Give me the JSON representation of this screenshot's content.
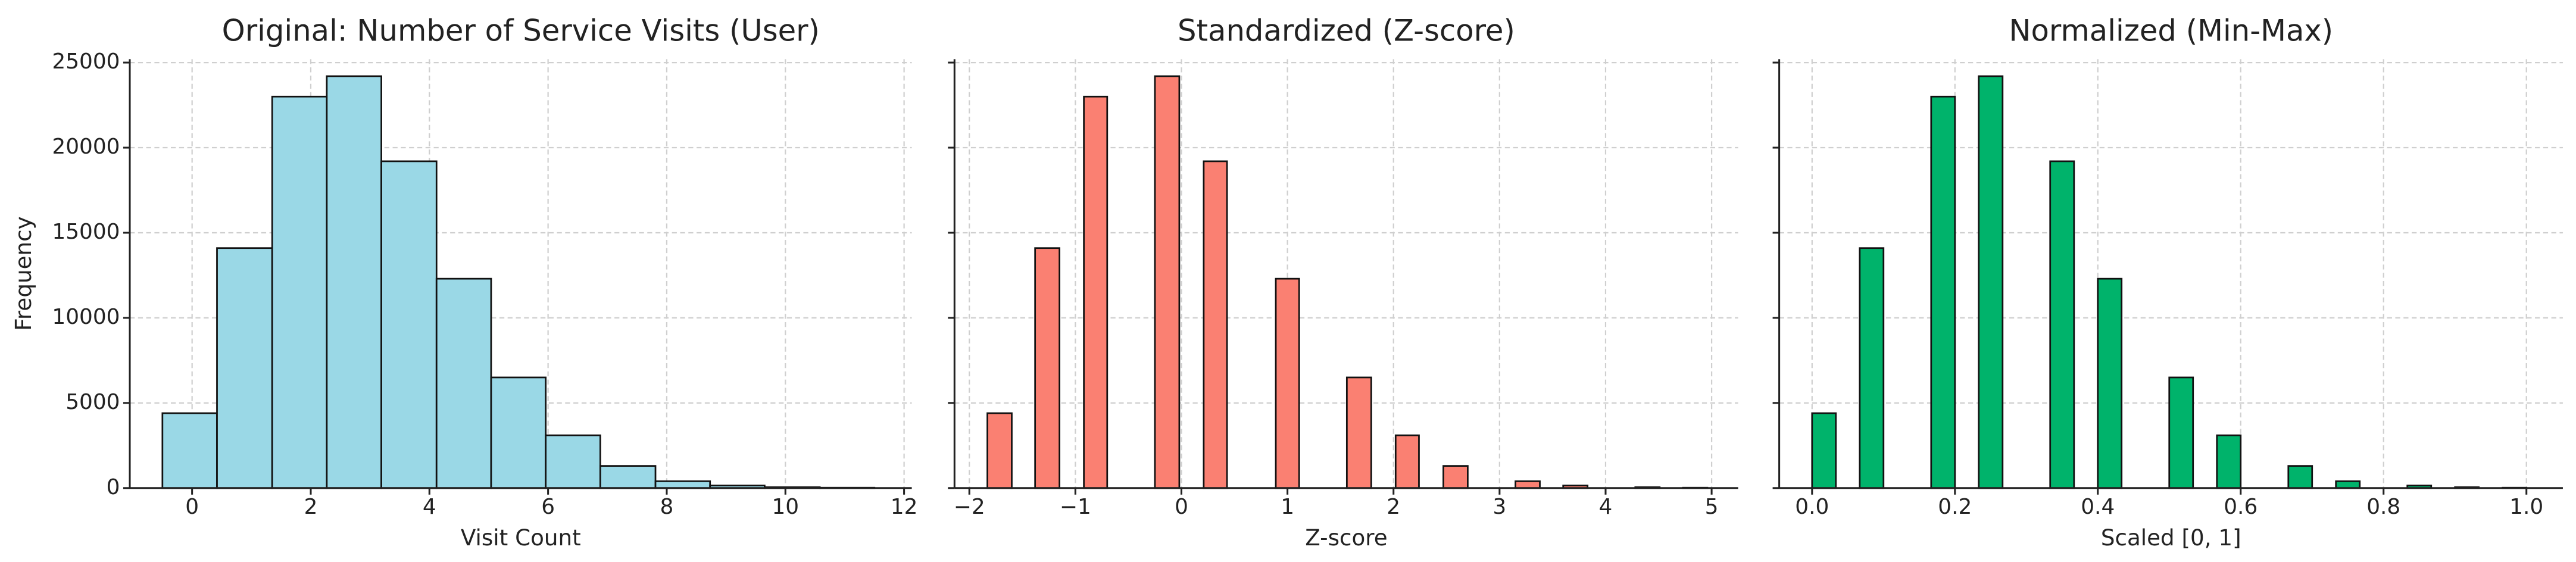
{
  "chart_data": [
    {
      "type": "histogram",
      "title": "Original: Number of Service Visits (User)",
      "xlabel": "Visit Count",
      "ylabel": "Frequency",
      "bins": [
        -0.5,
        0.42,
        1.35,
        2.27,
        3.19,
        4.12,
        5.04,
        5.96,
        6.88,
        7.81,
        8.73,
        9.65,
        10.58,
        11.5
      ],
      "values": [
        4400,
        14100,
        23000,
        24200,
        19200,
        12300,
        6500,
        3100,
        1300,
        400,
        150,
        50,
        20
      ],
      "color": "#9ad8e6",
      "xlim": [
        -1.05,
        12.13
      ],
      "ylim": [
        0,
        25200
      ],
      "xticks": [
        0,
        2,
        4,
        6,
        8,
        10,
        12
      ],
      "yticks": [
        0,
        5000,
        10000,
        15000,
        20000,
        25000
      ],
      "grid": true
    },
    {
      "type": "histogram",
      "title": "Standardized (Z-score)",
      "xlabel": "Z-score",
      "bins": [
        -1.83,
        -1.6,
        -1.38,
        -1.15,
        -0.92,
        -0.7,
        -0.47,
        -0.25,
        -0.02,
        0.21,
        0.43,
        0.66,
        0.89,
        1.11,
        1.34,
        1.56,
        1.79,
        2.02,
        2.24,
        2.47,
        2.7,
        2.92,
        3.15,
        3.38,
        3.6,
        3.83,
        4.06,
        4.28,
        4.51,
        4.73,
        4.96
      ],
      "values": [
        4400,
        0,
        14100,
        0,
        23000,
        0,
        0,
        24200,
        0,
        19200,
        0,
        0,
        12300,
        0,
        0,
        6500,
        0,
        3100,
        0,
        1300,
        0,
        0,
        400,
        0,
        150,
        0,
        0,
        50,
        0,
        20
      ],
      "color": "#fa8072",
      "xlim": [
        -2.14,
        5.25
      ],
      "ylim": [
        0,
        25200
      ],
      "xticks": [
        {
          "value": -2,
          "label": "−2"
        },
        {
          "value": -1,
          "label": "−1"
        },
        0,
        1,
        2,
        3,
        4,
        5
      ],
      "yticks": [
        0,
        5000,
        10000,
        15000,
        20000,
        25000
      ],
      "sharey": true,
      "grid": true
    },
    {
      "type": "histogram",
      "title": "Normalized (Min-Max)",
      "xlabel": "Scaled [0, 1]",
      "bins": [
        0,
        0.0333,
        0.0667,
        0.1,
        0.1333,
        0.1667,
        0.2,
        0.2333,
        0.2667,
        0.3,
        0.3333,
        0.3667,
        0.4,
        0.4333,
        0.4667,
        0.5,
        0.5333,
        0.5667,
        0.6,
        0.6333,
        0.6667,
        0.7,
        0.7333,
        0.7667,
        0.8,
        0.8333,
        0.8667,
        0.9,
        0.9333,
        0.9667,
        1
      ],
      "values": [
        4400,
        0,
        14100,
        0,
        0,
        23000,
        0,
        24200,
        0,
        0,
        19200,
        0,
        12300,
        0,
        0,
        6500,
        0,
        3100,
        0,
        0,
        1300,
        0,
        400,
        0,
        0,
        150,
        0,
        50,
        0,
        20
      ],
      "color": "#00b36b",
      "xlim": [
        -0.046,
        1.051
      ],
      "ylim": [
        0,
        25200
      ],
      "xticks": [
        {
          "value": 0,
          "label": "0.0"
        },
        0.2,
        0.4,
        0.6,
        0.8,
        {
          "value": 1,
          "label": "1.0"
        }
      ],
      "yticks": [
        0,
        5000,
        10000,
        15000,
        20000,
        25000
      ],
      "sharey": true,
      "grid": true
    }
  ]
}
